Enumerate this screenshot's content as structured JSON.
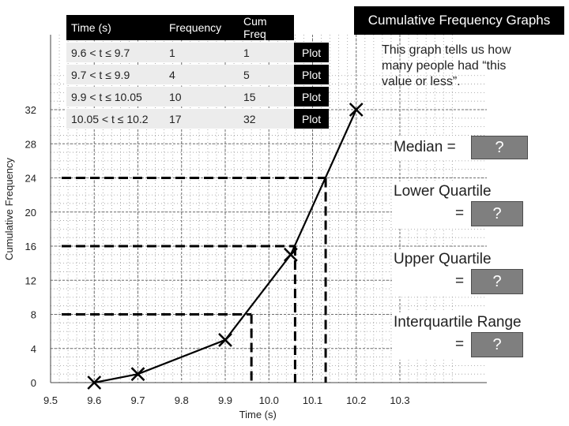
{
  "title": "Cumulative Frequency Graphs",
  "table": {
    "headers": [
      "Time (s)",
      "Frequency",
      "Cum Freq"
    ],
    "rows": [
      {
        "time": "9.6 < t ≤ 9.7",
        "freq": "1",
        "cum": "1",
        "plot": "Plot"
      },
      {
        "time": "9.7 < t ≤ 9.9",
        "freq": "4",
        "cum": "5",
        "plot": "Plot"
      },
      {
        "time": "9.9 < t ≤ 10.05",
        "freq": "10",
        "cum": "15",
        "plot": "Plot"
      },
      {
        "time": "10.05 < t ≤ 10.2",
        "freq": "17",
        "cum": "32",
        "plot": "Plot"
      }
    ]
  },
  "info_text": "This graph tells us how many people had “this value or less”.",
  "stats": {
    "median_label": "Median =",
    "lower_quartile_label": "Lower Quartile",
    "upper_quartile_label": "Upper Quartile",
    "iqr_label": "Interquartile Range",
    "equals": "=",
    "placeholder": "?"
  },
  "chart_data": {
    "type": "line",
    "xlabel": "Time (s)",
    "ylabel": "Cumulative Frequency",
    "xlim": [
      9.5,
      10.3
    ],
    "ylim": [
      0,
      32
    ],
    "x_ticks": [
      9.5,
      9.6,
      9.7,
      9.8,
      9.9,
      10.0,
      10.1,
      10.2,
      10.3
    ],
    "x_tick_labels": [
      "9.5",
      "9.6",
      "9.7",
      "9.8",
      "9.9",
      "10.0",
      "10.1",
      "10.2",
      "10.3"
    ],
    "y_ticks": [
      0,
      4,
      8,
      12,
      16,
      20,
      24,
      28,
      32
    ],
    "y_tick_labels": [
      "0",
      "4",
      "8",
      "12",
      "16",
      "20",
      "24",
      "28",
      "32"
    ],
    "points": [
      {
        "x": 9.6,
        "y": 0
      },
      {
        "x": 9.7,
        "y": 1
      },
      {
        "x": 9.9,
        "y": 5
      },
      {
        "x": 10.05,
        "y": 15
      },
      {
        "x": 10.2,
        "y": 32
      }
    ],
    "guide_lines": [
      {
        "y": 24,
        "x": 10.13
      },
      {
        "y": 16,
        "x": 10.06
      },
      {
        "y": 8,
        "x": 9.96
      }
    ],
    "grid": true
  }
}
